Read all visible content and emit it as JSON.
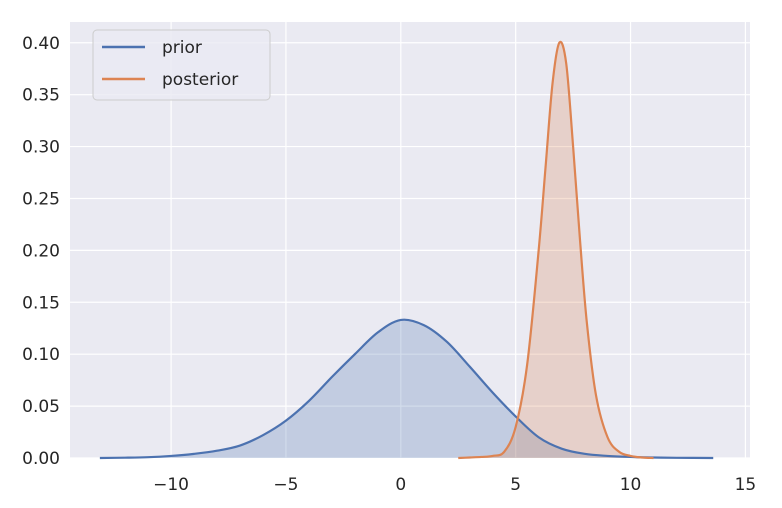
{
  "chart_data": {
    "type": "area",
    "title": "",
    "xlabel": "",
    "ylabel": "",
    "xlim": [
      -14.4,
      15.2
    ],
    "ylim": [
      0,
      0.42
    ],
    "grid": true,
    "legend_position": "top-left",
    "x_ticks": [
      -10,
      -5,
      0,
      5,
      10,
      15
    ],
    "x_tick_labels": [
      "−10",
      "−5",
      "0",
      "5",
      "10",
      "15"
    ],
    "y_ticks": [
      0.0,
      0.05,
      0.1,
      0.15,
      0.2,
      0.25,
      0.3,
      0.35,
      0.4
    ],
    "y_tick_labels": [
      "0.00",
      "0.05",
      "0.10",
      "0.15",
      "0.20",
      "0.25",
      "0.30",
      "0.35",
      "0.40"
    ],
    "series": [
      {
        "name": "prior",
        "color": "#4C72B0",
        "x": [
          -13.1,
          -12,
          -11,
          -10,
          -9,
          -8,
          -7,
          -6,
          -5,
          -4,
          -3,
          -2,
          -1,
          0,
          1,
          2,
          3,
          4,
          5,
          6,
          7,
          8,
          9,
          10,
          11,
          12,
          13.6
        ],
        "y": [
          0.0,
          0.0003,
          0.0008,
          0.002,
          0.004,
          0.007,
          0.012,
          0.022,
          0.036,
          0.055,
          0.078,
          0.1,
          0.121,
          0.133,
          0.128,
          0.112,
          0.088,
          0.063,
          0.04,
          0.02,
          0.009,
          0.004,
          0.002,
          0.001,
          0.0005,
          0.0002,
          0.0
        ]
      },
      {
        "name": "posterior",
        "color": "#DD8452",
        "x": [
          2.5,
          3,
          3.5,
          4,
          4.5,
          5,
          5.5,
          6,
          6.3,
          6.6,
          6.9,
          7.2,
          7.5,
          7.8,
          8.1,
          8.5,
          9,
          9.5,
          10,
          10.5,
          11
        ],
        "y": [
          0.0,
          0.0005,
          0.001,
          0.002,
          0.006,
          0.03,
          0.09,
          0.2,
          0.28,
          0.36,
          0.4,
          0.38,
          0.3,
          0.21,
          0.13,
          0.06,
          0.02,
          0.006,
          0.002,
          0.0005,
          0.0
        ]
      }
    ]
  }
}
